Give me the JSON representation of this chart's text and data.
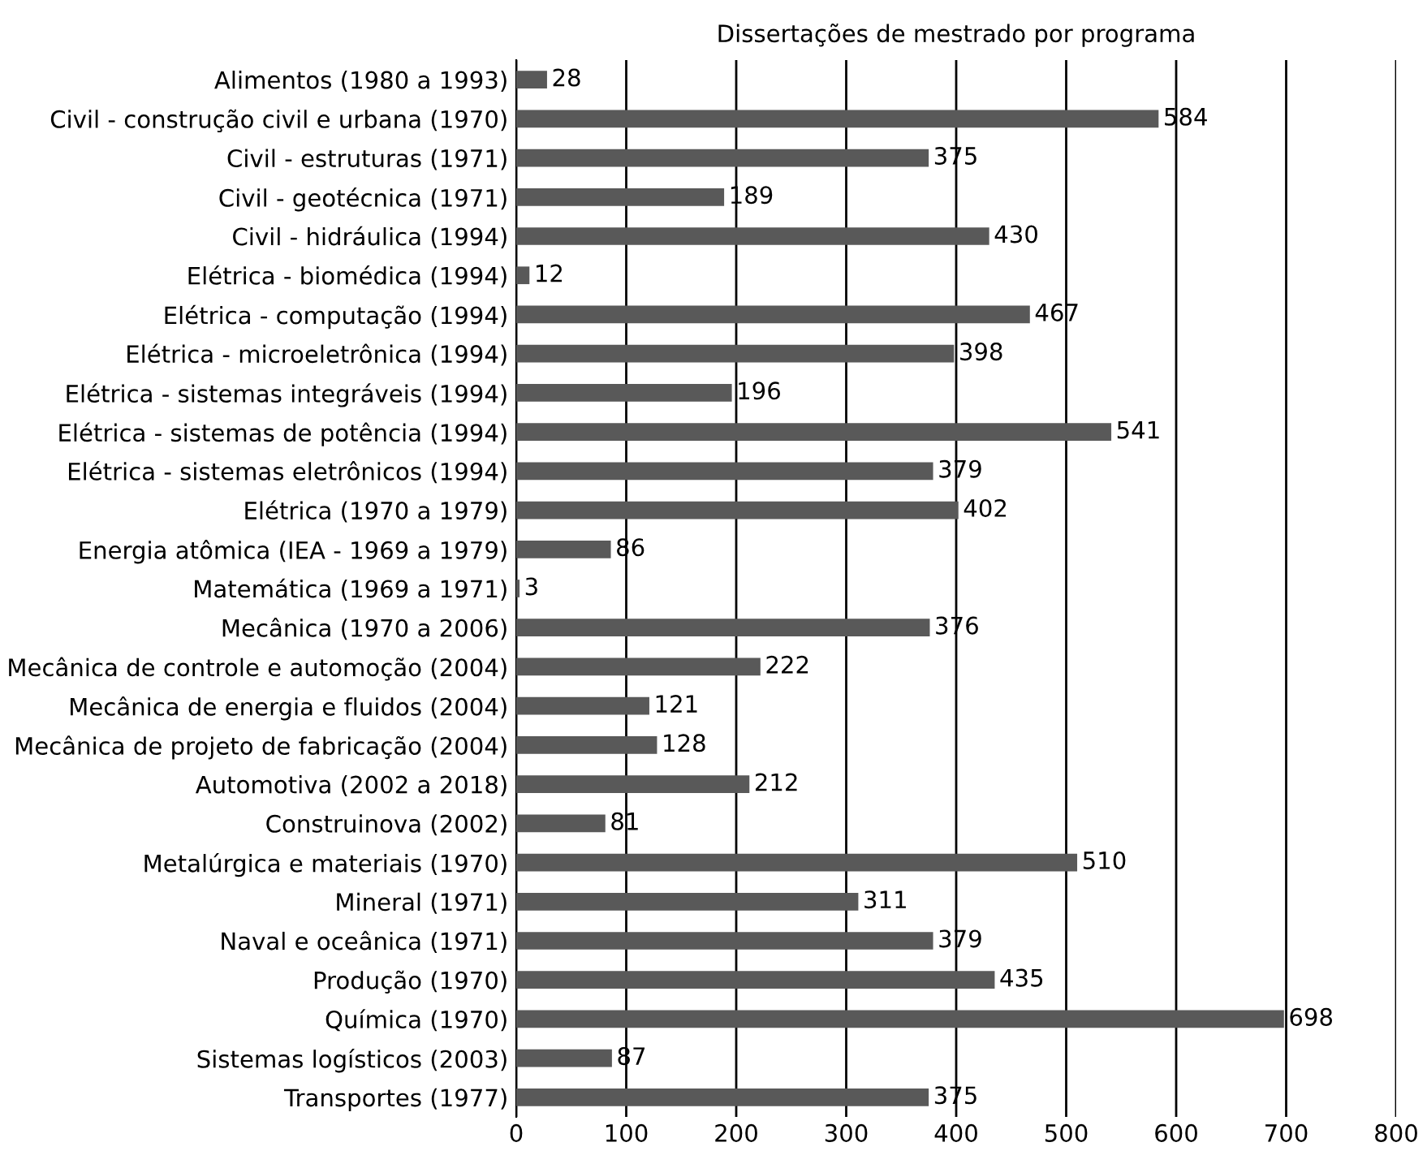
{
  "chart_data": {
    "type": "bar",
    "orientation": "horizontal",
    "title": "Dissertações de mestrado por programa",
    "categories": [
      "Alimentos (1980 a 1993)",
      "Civil - construção civil e urbana (1970)",
      "Civil - estruturas (1971)",
      "Civil - geotécnica (1971)",
      "Civil - hidráulica (1994)",
      "Elétrica - biomédica (1994)",
      "Elétrica - computação (1994)",
      "Elétrica - microeletrônica (1994)",
      "Elétrica - sistemas integráveis (1994)",
      "Elétrica - sistemas de potência (1994)",
      "Elétrica - sistemas eletrônicos (1994)",
      "Elétrica (1970 a 1979)",
      "Energia atômica (IEA - 1969 a 1979)",
      "Matemática (1969 a 1971)",
      "Mecânica (1970 a 2006)",
      "Mecânica de controle e automoção (2004)",
      "Mecânica de energia e fluidos (2004)",
      "Mecânica de projeto de fabricação (2004)",
      "Automotiva (2002 a 2018)",
      "Construinova (2002)",
      "Metalúrgica e materiais (1970)",
      "Mineral (1971)",
      "Naval e oceânica (1971)",
      "Produção (1970)",
      "Química (1970)",
      "Sistemas logísticos (2003)",
      "Transportes (1977)"
    ],
    "values": [
      28,
      584,
      375,
      189,
      430,
      12,
      467,
      398,
      196,
      541,
      379,
      402,
      86,
      3,
      376,
      222,
      121,
      128,
      212,
      81,
      510,
      311,
      379,
      435,
      698,
      87,
      375
    ],
    "color": "#595959",
    "xlim": [
      0,
      800
    ],
    "xticks": [
      0,
      100,
      200,
      300,
      400,
      500,
      600,
      700,
      800
    ],
    "grid": "x",
    "data_labels": true,
    "legend": false
  }
}
